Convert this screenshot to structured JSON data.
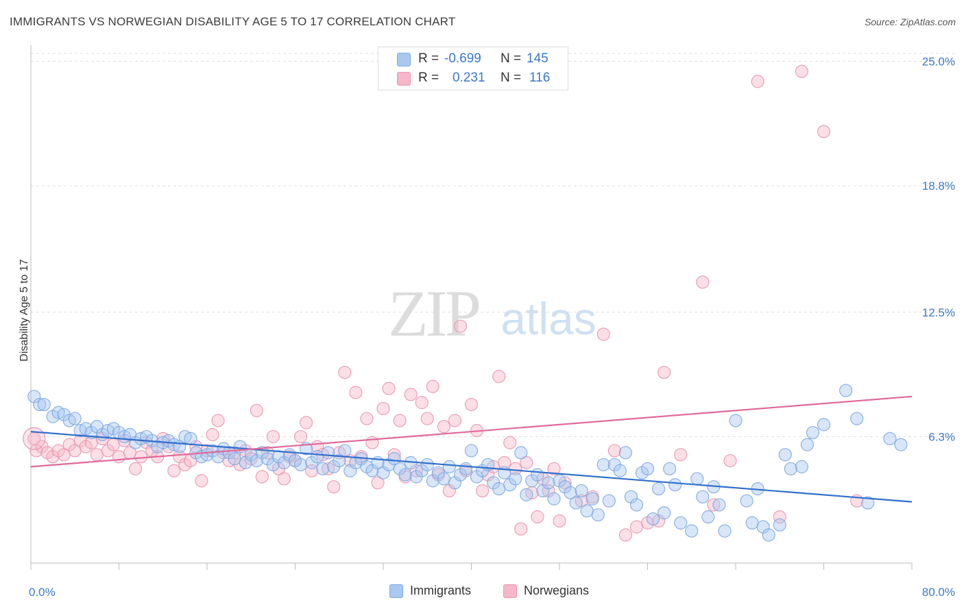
{
  "title": "IMMIGRANTS VS NORWEGIAN DISABILITY AGE 5 TO 17 CORRELATION CHART",
  "source": "Source: ZipAtlas.com",
  "watermark": {
    "zip": "ZIP",
    "atlas": "atlas"
  },
  "legend_top": [
    {
      "r_label": "R =",
      "r_value": "-0.699",
      "n_label": "N =",
      "n_value": "145",
      "color": "#a8c8f0"
    },
    {
      "r_label": "R =",
      "r_value": "0.231",
      "n_label": "N =",
      "n_value": "116",
      "color": "#f4b8c8"
    }
  ],
  "legend_bottom": [
    {
      "label": "Immigrants",
      "color": "#a8c8f0"
    },
    {
      "label": "Norwegians",
      "color": "#f4b8c8"
    }
  ],
  "chart_data": {
    "type": "scatter",
    "ylabel": "Disability Age 5 to 17",
    "xlabel": "",
    "xlim": [
      0,
      80
    ],
    "ylim": [
      0,
      25.6
    ],
    "x_tick_labels": [
      "0.0%",
      "80.0%"
    ],
    "y_ticks": [
      6.3,
      12.5,
      18.8,
      25.0
    ],
    "y_tick_labels": [
      "6.3%",
      "12.5%",
      "18.8%",
      "25.0%"
    ],
    "grid": true,
    "colors": {
      "immigrants_fill": "#a8c8f0",
      "immigrants_line": "#2f6fcc",
      "norwegians_fill": "#f4b8c8",
      "norwegians_line": "#e0679a",
      "tick_label": "#3a78c8"
    },
    "series": [
      {
        "name": "Immigrants",
        "trendline": {
          "x": [
            0,
            80
          ],
          "y": [
            6.55,
            3.05
          ]
        },
        "points": [
          [
            0.3,
            8.3
          ],
          [
            0.8,
            7.9
          ],
          [
            1.2,
            7.9
          ],
          [
            2,
            7.3
          ],
          [
            2.5,
            7.5
          ],
          [
            3,
            7.4
          ],
          [
            3.5,
            7.1
          ],
          [
            4,
            7.2
          ],
          [
            4.5,
            6.6
          ],
          [
            5,
            6.7
          ],
          [
            5.5,
            6.5
          ],
          [
            6,
            6.8
          ],
          [
            6.5,
            6.4
          ],
          [
            7,
            6.6
          ],
          [
            7.5,
            6.7
          ],
          [
            8,
            6.5
          ],
          [
            8.5,
            6.3
          ],
          [
            9,
            6.4
          ],
          [
            9.5,
            6.0
          ],
          [
            10,
            6.2
          ],
          [
            10.5,
            6.3
          ],
          [
            11,
            6.1
          ],
          [
            11.5,
            5.8
          ],
          [
            12,
            6.0
          ],
          [
            12.5,
            6.1
          ],
          [
            13,
            5.9
          ],
          [
            13.5,
            5.8
          ],
          [
            14,
            6.3
          ],
          [
            14.5,
            6.2
          ],
          [
            15,
            5.5
          ],
          [
            15.5,
            5.3
          ],
          [
            16,
            5.4
          ],
          [
            16.5,
            5.6
          ],
          [
            17,
            5.3
          ],
          [
            17.5,
            5.7
          ],
          [
            18,
            5.5
          ],
          [
            18.5,
            5.2
          ],
          [
            19,
            5.8
          ],
          [
            19.5,
            5.0
          ],
          [
            20,
            5.4
          ],
          [
            20.5,
            5.1
          ],
          [
            21,
            5.5
          ],
          [
            21.5,
            5.2
          ],
          [
            22,
            4.9
          ],
          [
            22.5,
            5.3
          ],
          [
            23,
            5.0
          ],
          [
            23.5,
            5.4
          ],
          [
            24,
            5.1
          ],
          [
            24.5,
            4.9
          ],
          [
            25,
            5.7
          ],
          [
            25.5,
            5.0
          ],
          [
            26,
            5.3
          ],
          [
            26.5,
            4.7
          ],
          [
            27,
            5.5
          ],
          [
            27.5,
            4.8
          ],
          [
            28,
            5.1
          ],
          [
            28.5,
            5.6
          ],
          [
            29,
            4.6
          ],
          [
            29.5,
            5.0
          ],
          [
            30,
            5.2
          ],
          [
            30.5,
            4.8
          ],
          [
            31,
            4.6
          ],
          [
            31.5,
            5.0
          ],
          [
            32,
            4.5
          ],
          [
            32.5,
            4.9
          ],
          [
            33,
            5.2
          ],
          [
            33.5,
            4.7
          ],
          [
            34,
            4.4
          ],
          [
            34.5,
            5.0
          ],
          [
            35,
            4.3
          ],
          [
            35.5,
            4.6
          ],
          [
            36,
            4.9
          ],
          [
            36.5,
            4.1
          ],
          [
            37,
            4.5
          ],
          [
            37.5,
            4.2
          ],
          [
            38,
            4.8
          ],
          [
            38.5,
            4.0
          ],
          [
            39,
            4.4
          ],
          [
            39.5,
            4.7
          ],
          [
            40,
            5.6
          ],
          [
            40.5,
            4.3
          ],
          [
            41,
            4.6
          ],
          [
            41.5,
            4.9
          ],
          [
            42,
            4.0
          ],
          [
            42.5,
            3.7
          ],
          [
            43,
            4.5
          ],
          [
            43.5,
            3.9
          ],
          [
            44,
            4.2
          ],
          [
            44.5,
            5.5
          ],
          [
            45,
            3.4
          ],
          [
            45.5,
            4.1
          ],
          [
            46,
            4.4
          ],
          [
            46.5,
            3.6
          ],
          [
            47,
            4.0
          ],
          [
            47.5,
            3.2
          ],
          [
            48,
            4.1
          ],
          [
            48.5,
            3.8
          ],
          [
            49,
            3.5
          ],
          [
            49.5,
            3.0
          ],
          [
            50,
            3.6
          ],
          [
            50.5,
            2.6
          ],
          [
            51,
            3.2
          ],
          [
            51.5,
            2.4
          ],
          [
            52,
            4.9
          ],
          [
            52.5,
            3.1
          ],
          [
            53,
            4.9
          ],
          [
            53.5,
            4.6
          ],
          [
            54,
            5.5
          ],
          [
            54.5,
            3.3
          ],
          [
            55,
            2.9
          ],
          [
            55.5,
            4.5
          ],
          [
            56,
            4.7
          ],
          [
            56.5,
            2.2
          ],
          [
            57,
            3.7
          ],
          [
            57.5,
            2.5
          ],
          [
            58,
            4.7
          ],
          [
            58.5,
            3.9
          ],
          [
            59,
            2.0
          ],
          [
            60,
            1.6
          ],
          [
            60.5,
            4.2
          ],
          [
            61,
            3.3
          ],
          [
            61.5,
            2.3
          ],
          [
            62,
            3.8
          ],
          [
            62.5,
            2.9
          ],
          [
            63,
            1.6
          ],
          [
            64,
            7.1
          ],
          [
            65,
            3.1
          ],
          [
            65.5,
            2.0
          ],
          [
            66,
            3.7
          ],
          [
            66.5,
            1.8
          ],
          [
            67,
            1.4
          ],
          [
            68,
            1.9
          ],
          [
            68.5,
            5.4
          ],
          [
            69,
            4.7
          ],
          [
            70,
            4.8
          ],
          [
            70.5,
            5.9
          ],
          [
            71,
            6.5
          ],
          [
            72,
            6.9
          ],
          [
            74,
            8.6
          ],
          [
            75,
            7.2
          ],
          [
            76,
            3.0
          ],
          [
            78,
            6.2
          ],
          [
            79,
            5.9
          ]
        ]
      },
      {
        "name": "Norwegians",
        "trendline": {
          "x": [
            0,
            80
          ],
          "y": [
            4.8,
            8.3
          ]
        },
        "points": [
          [
            0.3,
            6.2
          ],
          [
            0.5,
            5.6
          ],
          [
            1,
            5.8
          ],
          [
            1.5,
            5.5
          ],
          [
            2,
            5.3
          ],
          [
            2.5,
            5.6
          ],
          [
            3,
            5.4
          ],
          [
            3.5,
            5.9
          ],
          [
            4,
            5.6
          ],
          [
            4.5,
            6.1
          ],
          [
            5,
            5.8
          ],
          [
            5.5,
            6.0
          ],
          [
            6,
            5.4
          ],
          [
            6.5,
            6.2
          ],
          [
            7,
            5.6
          ],
          [
            7.5,
            5.9
          ],
          [
            8,
            5.3
          ],
          [
            8.5,
            6.1
          ],
          [
            9,
            5.5
          ],
          [
            9.5,
            4.7
          ],
          [
            10,
            5.3
          ],
          [
            10.5,
            6.0
          ],
          [
            11,
            5.6
          ],
          [
            11.5,
            5.3
          ],
          [
            12,
            6.2
          ],
          [
            12.5,
            5.8
          ],
          [
            13,
            4.6
          ],
          [
            13.5,
            5.3
          ],
          [
            14,
            4.9
          ],
          [
            14.5,
            5.1
          ],
          [
            15,
            5.8
          ],
          [
            15.5,
            4.1
          ],
          [
            16,
            5.6
          ],
          [
            16.5,
            6.4
          ],
          [
            17,
            7.1
          ],
          [
            17.5,
            5.5
          ],
          [
            18,
            5.1
          ],
          [
            18.5,
            5.5
          ],
          [
            19,
            4.9
          ],
          [
            19.5,
            5.6
          ],
          [
            20,
            5.2
          ],
          [
            20.5,
            7.6
          ],
          [
            21,
            4.3
          ],
          [
            21.5,
            5.5
          ],
          [
            22,
            6.3
          ],
          [
            22.5,
            4.7
          ],
          [
            23,
            4.2
          ],
          [
            23.5,
            5.3
          ],
          [
            24,
            5.1
          ],
          [
            24.5,
            6.3
          ],
          [
            25,
            7.0
          ],
          [
            25.5,
            4.6
          ],
          [
            26,
            5.8
          ],
          [
            26.5,
            5.4
          ],
          [
            27,
            4.7
          ],
          [
            27.5,
            3.8
          ],
          [
            28,
            5.5
          ],
          [
            28.5,
            9.5
          ],
          [
            29,
            5.1
          ],
          [
            29.5,
            8.5
          ],
          [
            30,
            5.3
          ],
          [
            30.5,
            7.2
          ],
          [
            31,
            6.0
          ],
          [
            31.5,
            4.0
          ],
          [
            32,
            7.7
          ],
          [
            32.5,
            8.7
          ],
          [
            33,
            5.4
          ],
          [
            33.5,
            7.1
          ],
          [
            34,
            4.3
          ],
          [
            34.5,
            8.4
          ],
          [
            35,
            4.6
          ],
          [
            35.5,
            8.0
          ],
          [
            36,
            7.2
          ],
          [
            36.5,
            8.8
          ],
          [
            37,
            4.4
          ],
          [
            37.5,
            6.8
          ],
          [
            38,
            3.6
          ],
          [
            38.5,
            7.1
          ],
          [
            39,
            11.8
          ],
          [
            39.5,
            4.6
          ],
          [
            40,
            7.9
          ],
          [
            40.5,
            6.6
          ],
          [
            41,
            3.6
          ],
          [
            41.5,
            4.4
          ],
          [
            42,
            4.8
          ],
          [
            42.5,
            9.3
          ],
          [
            43,
            5.0
          ],
          [
            43.5,
            6.0
          ],
          [
            44,
            4.7
          ],
          [
            44.5,
            1.7
          ],
          [
            45,
            5.0
          ],
          [
            45.5,
            3.5
          ],
          [
            46,
            2.3
          ],
          [
            46.5,
            4.2
          ],
          [
            47,
            3.6
          ],
          [
            47.5,
            4.7
          ],
          [
            48,
            2.1
          ],
          [
            48.5,
            4.0
          ],
          [
            50,
            3.1
          ],
          [
            51,
            3.3
          ],
          [
            52,
            11.4
          ],
          [
            53,
            5.6
          ],
          [
            54,
            1.4
          ],
          [
            55,
            1.8
          ],
          [
            56,
            2.0
          ],
          [
            57,
            2.1
          ],
          [
            57.5,
            9.5
          ],
          [
            59,
            5.4
          ],
          [
            61,
            14.0
          ],
          [
            62,
            2.9
          ],
          [
            63.5,
            5.1
          ],
          [
            66,
            24.0
          ],
          [
            68,
            2.3
          ],
          [
            70,
            24.5
          ],
          [
            72,
            21.5
          ],
          [
            75,
            3.1
          ]
        ]
      }
    ]
  }
}
